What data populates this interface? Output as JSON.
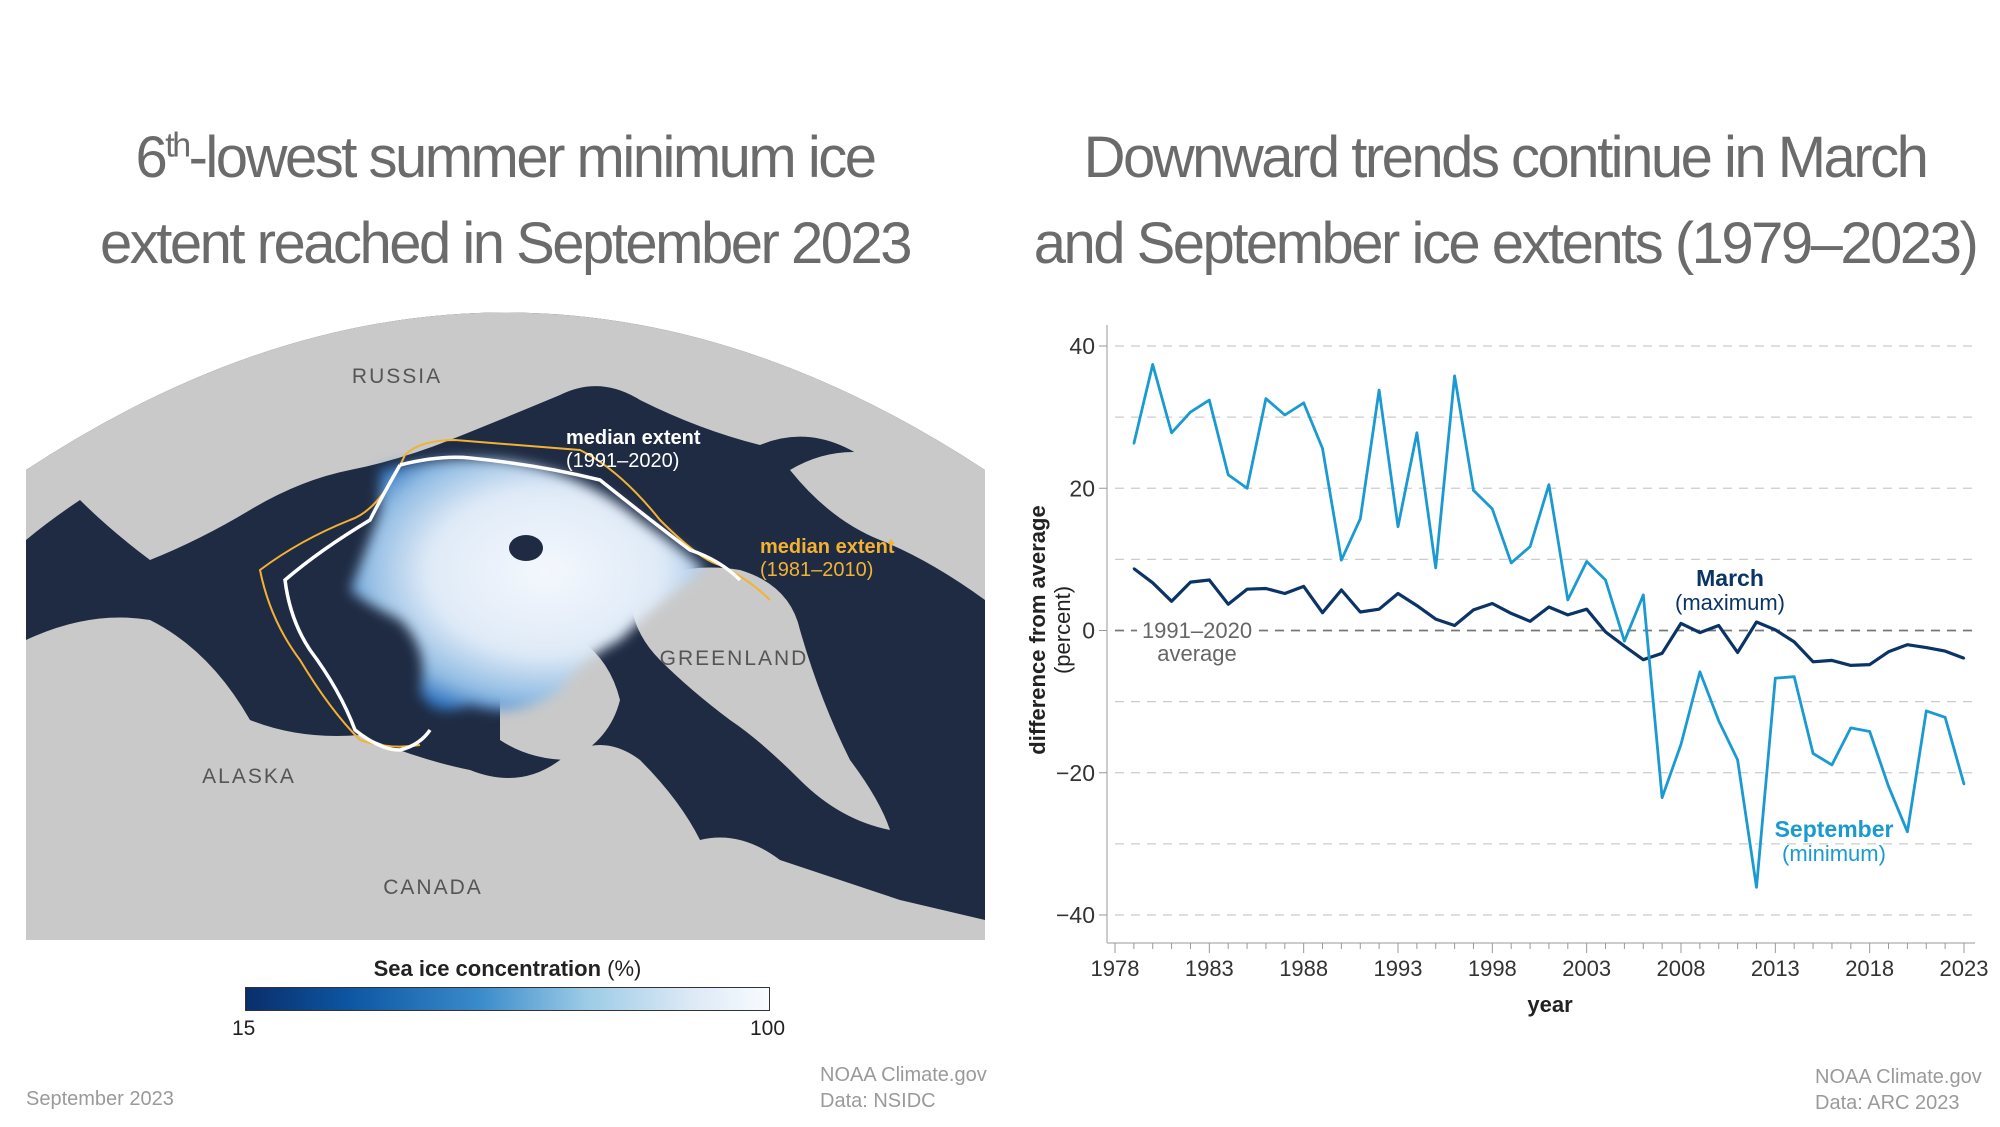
{
  "left_panel": {
    "title_prefix": "6",
    "title_sup": "th",
    "title_line1_rest": "-lowest summer minimum ice",
    "title_line2": "extent reached in September 2023",
    "map_labels": {
      "russia": "RUSSIA",
      "greenland": "GREENLAND",
      "alaska": "ALASKA",
      "canada": "CANADA",
      "median_1991_title": "median extent",
      "median_1991_years": "(1991–2020)",
      "median_1981_title": "median extent",
      "median_1981_years": "(1981–2010)"
    },
    "colors": {
      "ocean": "#1f2b43",
      "land": "#c9c9c9",
      "median_1991_2020": "#ffffff",
      "median_1981_2010": "#f2b233",
      "ice_low": "#0a2e6b",
      "ice_high": "#f4f8fd"
    },
    "legend": {
      "title": "Sea ice concentration",
      "unit": "(%)",
      "min": "15",
      "max": "100"
    },
    "date": "September 2023",
    "credit_line1": "NOAA Climate.gov",
    "credit_line2": "Data: NSIDC"
  },
  "right_panel": {
    "title_line1": "Downward trends continue in March",
    "title_line2": "and September ice extents (1979–2023)",
    "credit_line1": "NOAA Climate.gov",
    "credit_line2": "Data: ARC 2023"
  },
  "chart_data": {
    "type": "line",
    "xlabel": "year",
    "ylabel": "difference from average",
    "ylabel_unit": "(percent)",
    "xlim": [
      1978,
      2023
    ],
    "ylim": [
      -44,
      43
    ],
    "xticks": [
      1978,
      1983,
      1988,
      1993,
      1998,
      2003,
      2008,
      2013,
      2018,
      2023
    ],
    "yticks": [
      40,
      20,
      0,
      -20,
      -40
    ],
    "grid": "horizontal dashed every 10",
    "reference_line": {
      "value": 0,
      "label_line1": "1991–2020",
      "label_line2": "average"
    },
    "x": [
      1979,
      1980,
      1981,
      1982,
      1983,
      1984,
      1985,
      1986,
      1987,
      1988,
      1989,
      1990,
      1991,
      1992,
      1993,
      1994,
      1995,
      1996,
      1997,
      1998,
      1999,
      2000,
      2001,
      2002,
      2003,
      2004,
      2005,
      2006,
      2007,
      2008,
      2009,
      2010,
      2011,
      2012,
      2013,
      2014,
      2015,
      2016,
      2017,
      2018,
      2019,
      2020,
      2021,
      2022,
      2023
    ],
    "series": [
      {
        "name": "March",
        "subtitle": "(maximum)",
        "color": "#0b3466",
        "values": [
          8.7,
          6.7,
          4.1,
          6.8,
          7.1,
          3.7,
          5.8,
          5.9,
          5.2,
          6.2,
          2.5,
          5.7,
          2.6,
          3.0,
          5.2,
          3.5,
          1.6,
          0.7,
          2.9,
          3.8,
          2.4,
          1.3,
          3.3,
          2.2,
          3.0,
          -0.2,
          -2.2,
          -4.1,
          -3.2,
          1.0,
          -0.3,
          0.7,
          -3.1,
          1.2,
          0.1,
          -1.6,
          -4.4,
          -4.2,
          -4.9,
          -4.8,
          -3.0,
          -2.0,
          -2.4,
          -2.9,
          -3.9
        ]
      },
      {
        "name": "September",
        "subtitle": "(minimum)",
        "color": "#1a9ad1",
        "values": [
          26.3,
          37.4,
          27.8,
          30.7,
          32.4,
          21.9,
          20.0,
          32.6,
          30.3,
          32.0,
          25.6,
          9.9,
          15.7,
          33.8,
          14.6,
          27.8,
          8.8,
          35.8,
          19.7,
          17.1,
          9.5,
          11.8,
          20.5,
          4.3,
          9.7,
          7.1,
          -1.5,
          5.0,
          -23.5,
          -16.0,
          -5.8,
          -12.7,
          -18.2,
          -36.1,
          -6.7,
          -6.5,
          -17.3,
          -18.9,
          -13.7,
          -14.2,
          -21.9,
          -28.3,
          -11.3,
          -12.2,
          -21.6
        ]
      }
    ]
  }
}
